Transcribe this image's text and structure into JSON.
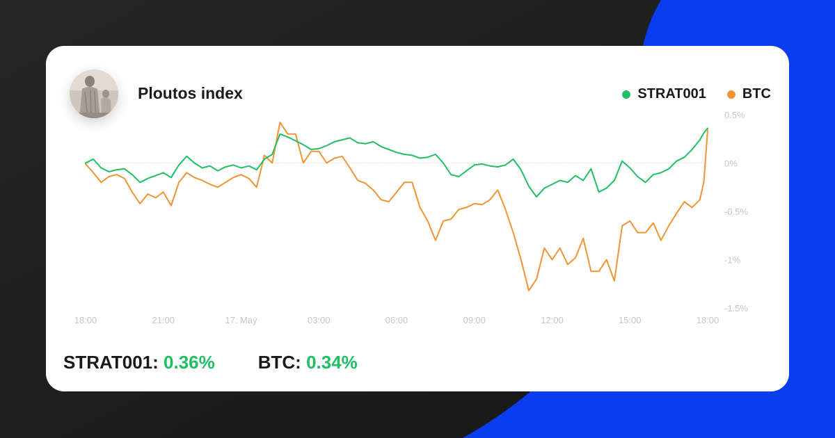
{
  "header": {
    "title": "Ploutos index"
  },
  "colors": {
    "strat": "#1fbf62",
    "btc": "#f29334",
    "background_dark": "#1e1e1e",
    "accent_blue": "#0a3cf0"
  },
  "summary": {
    "strat_label": "STRAT001:",
    "strat_value": "0.36%",
    "btc_label": "BTC:",
    "btc_value": "0.34%"
  },
  "chart_data": {
    "type": "line",
    "title": "",
    "xlabel": "",
    "ylabel": "",
    "grid": false,
    "legend_position": "top-right",
    "x_ticks": [
      "18:00",
      "21:00",
      "17. May",
      "03:00",
      "06:00",
      "09:00",
      "12:00",
      "15:00",
      "18:00"
    ],
    "y_ticks": [
      "0.5%",
      "0%",
      "-0.5%",
      "-1%",
      "-1.5%"
    ],
    "y_tick_values": [
      0.5,
      0,
      -0.5,
      -1,
      -1.5
    ],
    "xlim": [
      0,
      24
    ],
    "ylim": [
      -1.5,
      0.5
    ],
    "x_unit": "hours since 16 May 18:00",
    "series": [
      {
        "name": "STRAT001",
        "color": "#1fbf62",
        "x": [
          0,
          0.3,
          0.6,
          0.9,
          1.2,
          1.5,
          1.8,
          2.1,
          2.4,
          2.7,
          3.0,
          3.3,
          3.6,
          3.9,
          4.2,
          4.5,
          4.8,
          5.1,
          5.4,
          5.7,
          6.0,
          6.3,
          6.6,
          6.9,
          7.2,
          7.5,
          7.8,
          8.1,
          8.4,
          8.7,
          9.0,
          9.3,
          9.6,
          9.9,
          10.2,
          10.5,
          10.8,
          11.1,
          11.4,
          11.7,
          12.0,
          12.3,
          12.6,
          12.9,
          13.2,
          13.5,
          13.8,
          14.1,
          14.4,
          14.7,
          15.0,
          15.3,
          15.6,
          15.9,
          16.2,
          16.5,
          16.8,
          17.1,
          17.4,
          17.7,
          18.0,
          18.3,
          18.6,
          18.9,
          19.2,
          19.5,
          19.8,
          20.1,
          20.4,
          20.7,
          21.0,
          21.3,
          21.6,
          21.9,
          22.2,
          22.5,
          22.8,
          23.1,
          23.4,
          23.7,
          23.85,
          24.0
        ],
        "y": [
          0.0,
          0.04,
          -0.05,
          -0.09,
          -0.07,
          -0.06,
          -0.12,
          -0.2,
          -0.16,
          -0.13,
          -0.1,
          -0.15,
          -0.02,
          0.07,
          0.0,
          -0.05,
          -0.03,
          -0.08,
          -0.04,
          -0.02,
          -0.05,
          -0.03,
          -0.07,
          0.04,
          0.09,
          0.3,
          0.27,
          0.23,
          0.19,
          0.14,
          0.15,
          0.18,
          0.22,
          0.24,
          0.26,
          0.21,
          0.2,
          0.22,
          0.17,
          0.14,
          0.11,
          0.09,
          0.08,
          0.05,
          0.06,
          0.09,
          0.0,
          -0.12,
          -0.14,
          -0.08,
          -0.02,
          -0.01,
          -0.03,
          -0.04,
          -0.02,
          0.04,
          -0.07,
          -0.24,
          -0.35,
          -0.26,
          -0.22,
          -0.18,
          -0.2,
          -0.13,
          -0.18,
          -0.06,
          -0.3,
          -0.26,
          -0.18,
          0.02,
          -0.05,
          -0.14,
          -0.2,
          -0.12,
          -0.1,
          -0.06,
          0.02,
          0.06,
          0.14,
          0.24,
          0.31,
          0.36
        ]
      },
      {
        "name": "BTC",
        "color": "#f29334",
        "x": [
          0,
          0.3,
          0.6,
          0.9,
          1.2,
          1.5,
          1.8,
          2.1,
          2.4,
          2.7,
          3.0,
          3.3,
          3.6,
          3.9,
          4.2,
          4.5,
          4.8,
          5.1,
          5.4,
          5.7,
          6.0,
          6.3,
          6.6,
          6.9,
          7.2,
          7.5,
          7.8,
          8.1,
          8.4,
          8.7,
          9.0,
          9.3,
          9.6,
          9.9,
          10.2,
          10.5,
          10.8,
          11.1,
          11.4,
          11.7,
          12.0,
          12.3,
          12.6,
          12.9,
          13.2,
          13.5,
          13.8,
          14.1,
          14.4,
          14.7,
          15.0,
          15.3,
          15.6,
          15.9,
          16.2,
          16.5,
          16.8,
          17.1,
          17.4,
          17.7,
          18.0,
          18.3,
          18.6,
          18.9,
          19.2,
          19.5,
          19.8,
          20.1,
          20.4,
          20.7,
          21.0,
          21.3,
          21.6,
          21.9,
          22.2,
          22.5,
          22.8,
          23.1,
          23.4,
          23.7,
          23.85,
          24.0
        ],
        "y": [
          -0.01,
          -0.1,
          -0.2,
          -0.14,
          -0.12,
          -0.16,
          -0.3,
          -0.42,
          -0.32,
          -0.36,
          -0.3,
          -0.44,
          -0.2,
          -0.1,
          -0.15,
          -0.18,
          -0.22,
          -0.25,
          -0.2,
          -0.15,
          -0.12,
          -0.16,
          -0.25,
          0.08,
          0.0,
          0.42,
          0.3,
          0.3,
          0.0,
          0.12,
          0.12,
          0.0,
          0.05,
          0.07,
          -0.05,
          -0.18,
          -0.21,
          -0.28,
          -0.38,
          -0.4,
          -0.3,
          -0.2,
          -0.2,
          -0.46,
          -0.6,
          -0.8,
          -0.6,
          -0.58,
          -0.48,
          -0.46,
          -0.42,
          -0.43,
          -0.38,
          -0.28,
          -0.48,
          -0.72,
          -1.0,
          -1.32,
          -1.2,
          -0.88,
          -1.0,
          -0.88,
          -1.05,
          -0.98,
          -0.78,
          -1.12,
          -1.12,
          -1.0,
          -1.22,
          -0.65,
          -0.6,
          -0.72,
          -0.72,
          -0.62,
          -0.8,
          -0.65,
          -0.52,
          -0.4,
          -0.46,
          -0.38,
          -0.2,
          0.34
        ]
      }
    ]
  }
}
